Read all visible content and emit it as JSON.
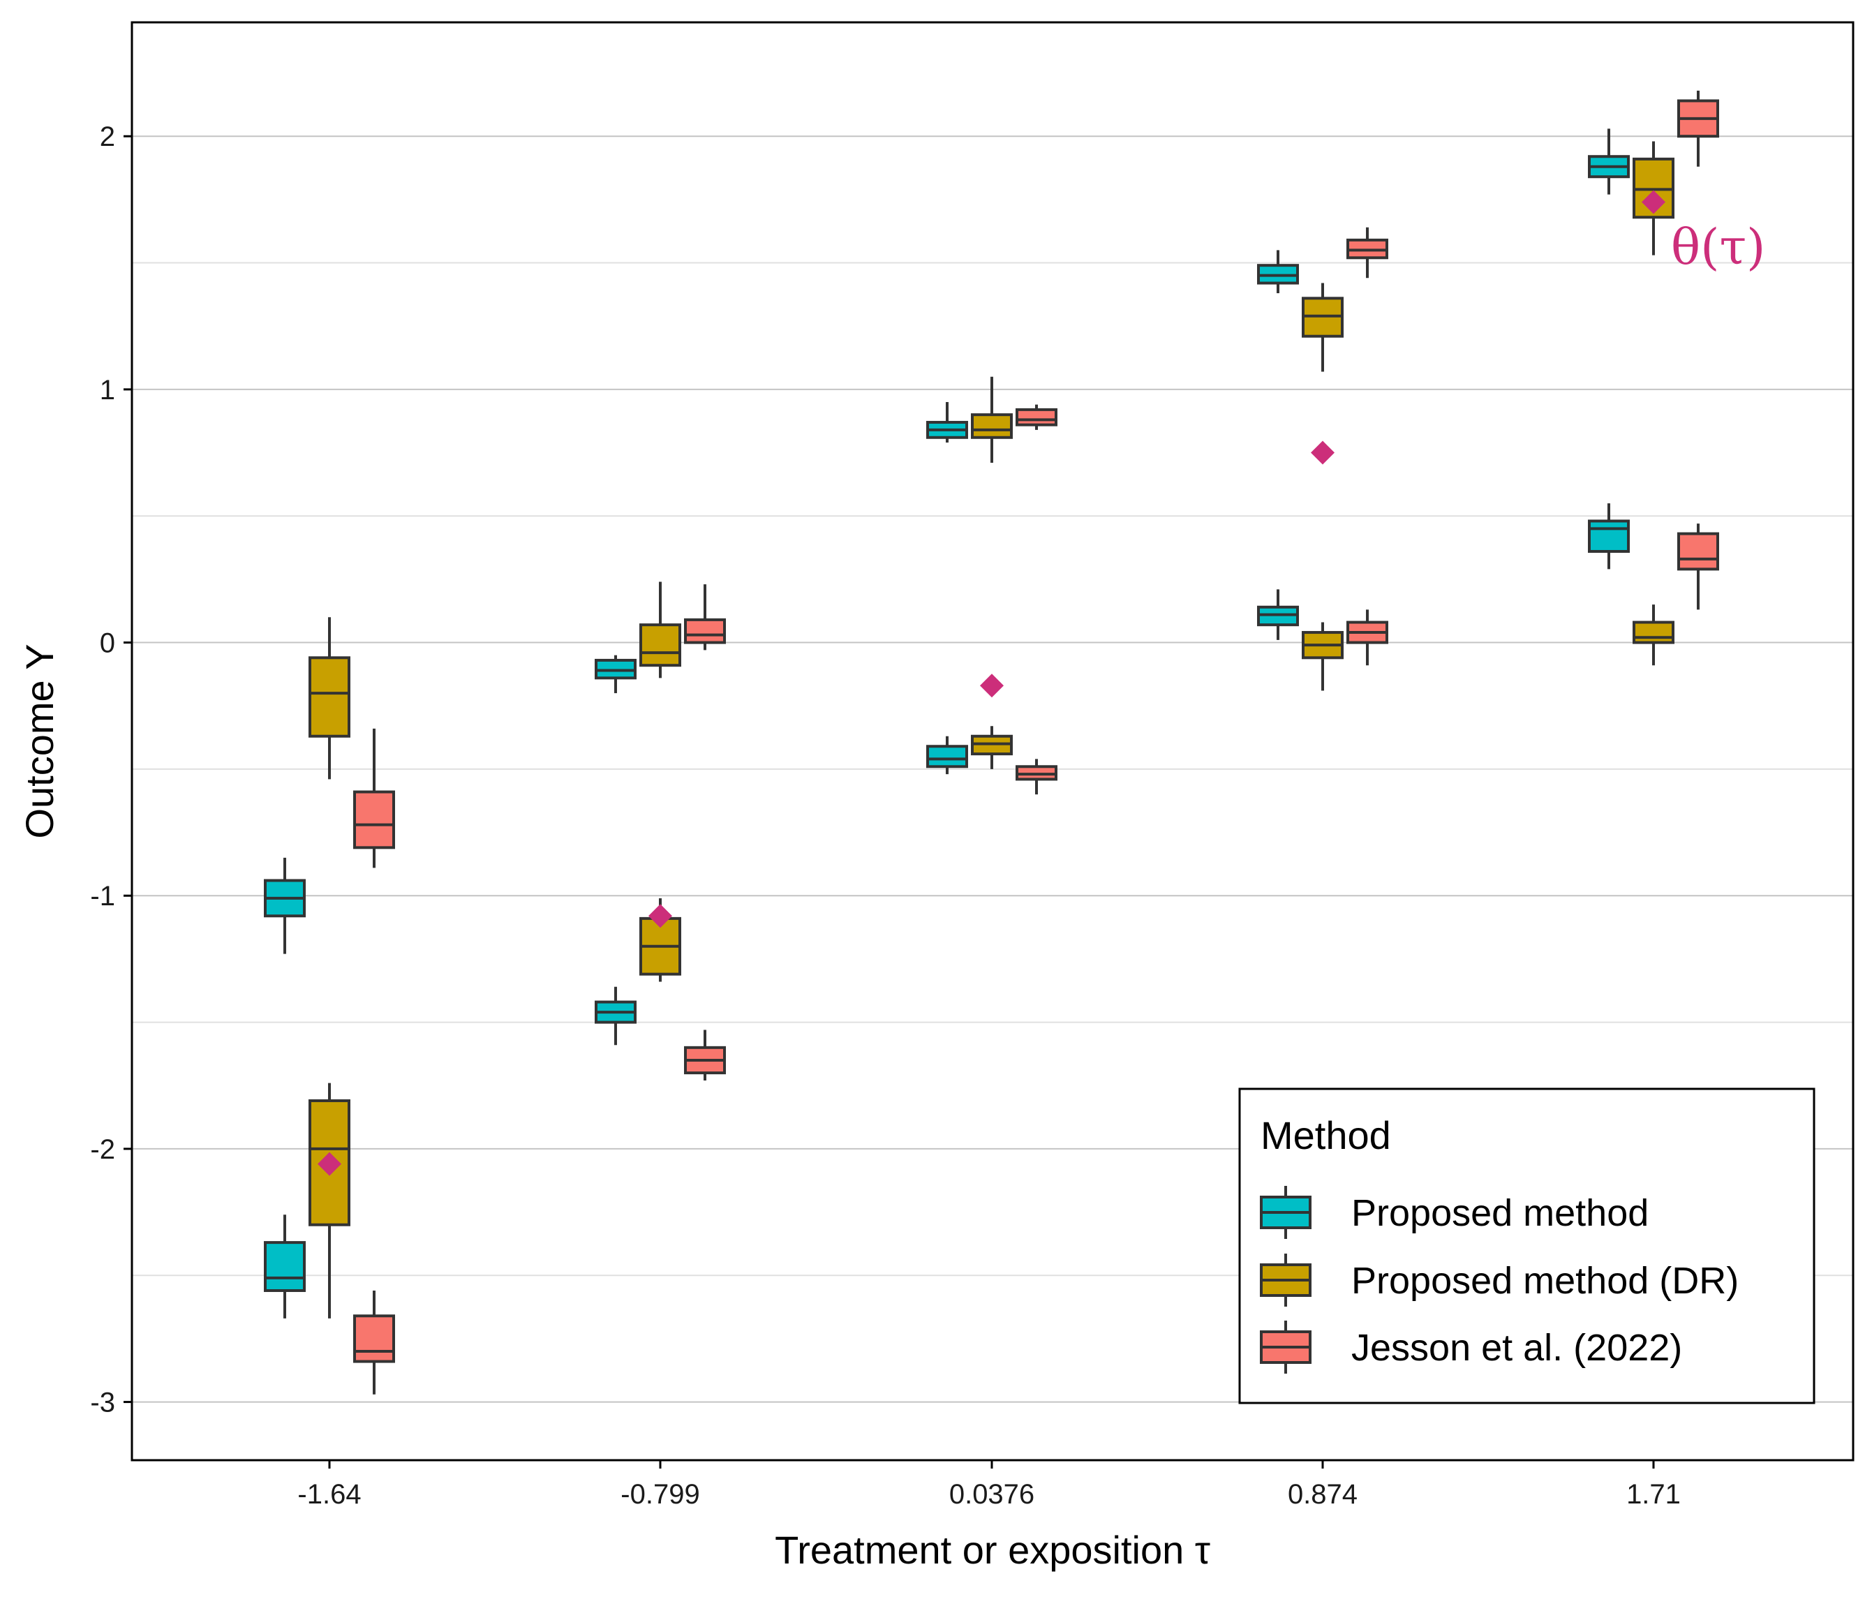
{
  "chart_data": {
    "type": "boxplot",
    "xlabel": "Treatment or exposition τ",
    "ylabel": "Outcome Y",
    "ylim": [
      -3.23,
      2.45
    ],
    "yticks": [
      -3,
      -2,
      -1,
      0,
      1,
      2
    ],
    "ytick_labels": [
      "-3",
      "-2",
      "-1",
      "0",
      "1",
      "2"
    ],
    "minor_gridlines": [
      -2.5,
      -1.5,
      -0.5,
      0.5,
      1.5
    ],
    "categories": [
      "-1.64",
      "-0.799",
      "0.0376",
      "0.874",
      "1.71"
    ],
    "theta_label": "θ(τ)",
    "theta_color": "#cc2e7a",
    "theta": [
      -2.06,
      -1.08,
      -0.17,
      0.75,
      1.74
    ],
    "legend": {
      "title": "Method",
      "position": "bottom-right"
    },
    "series": [
      {
        "name": "Proposed method",
        "color": "#00bec6",
        "boxes": [
          {
            "category": 0,
            "whislo": -1.23,
            "q1": -1.08,
            "med": -1.01,
            "q3": -0.94,
            "whishi": -0.85
          },
          {
            "category": 0,
            "whislo": -2.67,
            "q1": -2.56,
            "med": -2.51,
            "q3": -2.37,
            "whishi": -2.26
          },
          {
            "category": 1,
            "whislo": -0.2,
            "q1": -0.14,
            "med": -0.11,
            "q3": -0.07,
            "whishi": -0.05
          },
          {
            "category": 1,
            "whislo": -1.59,
            "q1": -1.5,
            "med": -1.46,
            "q3": -1.42,
            "whishi": -1.36
          },
          {
            "category": 2,
            "whislo": 0.79,
            "q1": 0.81,
            "med": 0.84,
            "q3": 0.87,
            "whishi": 0.95
          },
          {
            "category": 2,
            "whislo": -0.52,
            "q1": -0.49,
            "med": -0.46,
            "q3": -0.41,
            "whishi": -0.37
          },
          {
            "category": 3,
            "whislo": 1.38,
            "q1": 1.42,
            "med": 1.45,
            "q3": 1.49,
            "whishi": 1.55
          },
          {
            "category": 3,
            "whislo": 0.01,
            "q1": 0.07,
            "med": 0.11,
            "q3": 0.14,
            "whishi": 0.21
          },
          {
            "category": 4,
            "whislo": 1.77,
            "q1": 1.84,
            "med": 1.88,
            "q3": 1.92,
            "whishi": 2.03
          },
          {
            "category": 4,
            "whislo": 0.29,
            "q1": 0.36,
            "med": 0.45,
            "q3": 0.48,
            "whishi": 0.55
          }
        ]
      },
      {
        "name": "Proposed method (DR)",
        "color": "#c8a000",
        "boxes": [
          {
            "category": 0,
            "whislo": -0.54,
            "q1": -0.37,
            "med": -0.2,
            "q3": -0.06,
            "whishi": 0.1
          },
          {
            "category": 0,
            "whislo": -2.67,
            "q1": -2.3,
            "med": -2.0,
            "q3": -1.81,
            "whishi": -1.74
          },
          {
            "category": 1,
            "whislo": -0.14,
            "q1": -0.09,
            "med": -0.04,
            "q3": 0.07,
            "whishi": 0.24
          },
          {
            "category": 1,
            "whislo": -1.34,
            "q1": -1.31,
            "med": -1.2,
            "q3": -1.09,
            "whishi": -1.01
          },
          {
            "category": 2,
            "whislo": 0.71,
            "q1": 0.81,
            "med": 0.84,
            "q3": 0.9,
            "whishi": 1.05
          },
          {
            "category": 2,
            "whislo": -0.5,
            "q1": -0.44,
            "med": -0.4,
            "q3": -0.37,
            "whishi": -0.33
          },
          {
            "category": 3,
            "whislo": 1.07,
            "q1": 1.21,
            "med": 1.29,
            "q3": 1.36,
            "whishi": 1.42
          },
          {
            "category": 3,
            "whislo": -0.19,
            "q1": -0.06,
            "med": -0.01,
            "q3": 0.04,
            "whishi": 0.08
          },
          {
            "category": 4,
            "whislo": 1.53,
            "q1": 1.68,
            "med": 1.79,
            "q3": 1.91,
            "whishi": 1.98
          },
          {
            "category": 4,
            "whislo": -0.09,
            "q1": 0.0,
            "med": 0.02,
            "q3": 0.08,
            "whishi": 0.15
          }
        ]
      },
      {
        "name": "Jesson et al. (2022)",
        "color": "#f8766d",
        "boxes": [
          {
            "category": 0,
            "whislo": -0.89,
            "q1": -0.81,
            "med": -0.72,
            "q3": -0.59,
            "whishi": -0.34
          },
          {
            "category": 0,
            "whislo": -2.97,
            "q1": -2.84,
            "med": -2.8,
            "q3": -2.66,
            "whishi": -2.56
          },
          {
            "category": 1,
            "whislo": -0.03,
            "q1": 0.0,
            "med": 0.03,
            "q3": 0.09,
            "whishi": 0.23
          },
          {
            "category": 1,
            "whislo": -1.73,
            "q1": -1.7,
            "med": -1.65,
            "q3": -1.6,
            "whishi": -1.53
          },
          {
            "category": 2,
            "whislo": 0.84,
            "q1": 0.86,
            "med": 0.88,
            "q3": 0.92,
            "whishi": 0.94
          },
          {
            "category": 2,
            "whislo": -0.6,
            "q1": -0.54,
            "med": -0.52,
            "q3": -0.49,
            "whishi": -0.46
          },
          {
            "category": 3,
            "whislo": 1.44,
            "q1": 1.52,
            "med": 1.55,
            "q3": 1.59,
            "whishi": 1.64
          },
          {
            "category": 3,
            "whislo": -0.09,
            "q1": 0.0,
            "med": 0.04,
            "q3": 0.08,
            "whishi": 0.13
          },
          {
            "category": 4,
            "whislo": 1.88,
            "q1": 2.0,
            "med": 2.07,
            "q3": 2.14,
            "whishi": 2.18
          },
          {
            "category": 4,
            "whislo": 0.13,
            "q1": 0.29,
            "med": 0.33,
            "q3": 0.43,
            "whishi": 0.47
          }
        ]
      }
    ]
  }
}
